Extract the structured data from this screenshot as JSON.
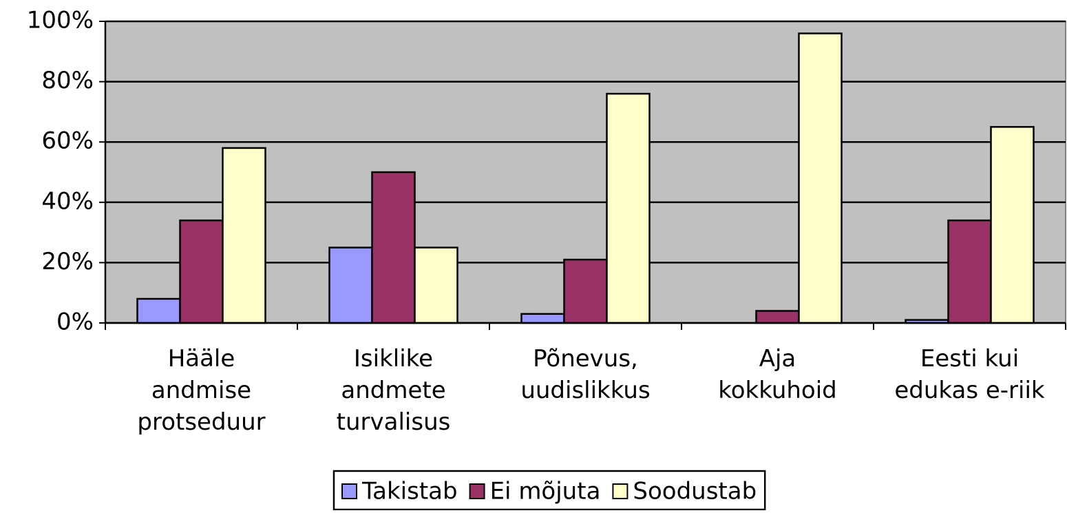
{
  "chart_data": {
    "type": "bar",
    "categories": [
      [
        "Hääle",
        "andmise",
        "protseduur"
      ],
      [
        "Isiklike",
        "andmete",
        "turvalisus"
      ],
      [
        "Põnevus,",
        "uudislikkus"
      ],
      [
        "Aja",
        "kokkuhoid"
      ],
      [
        "Eesti kui",
        "edukas e-riik"
      ]
    ],
    "series": [
      {
        "name": "Takistab",
        "color": "#9999ff",
        "values": [
          8,
          25,
          3,
          0,
          1
        ]
      },
      {
        "name": "Ei mõjuta",
        "color": "#993366",
        "values": [
          34,
          50,
          21,
          4,
          34
        ]
      },
      {
        "name": "Soodustab",
        "color": "#ffffcc",
        "values": [
          58,
          25,
          76,
          96,
          65
        ]
      }
    ],
    "ylim": [
      0,
      100
    ],
    "yticks": [
      {
        "value": 0,
        "label": "0%"
      },
      {
        "value": 20,
        "label": "20%"
      },
      {
        "value": 40,
        "label": "40%"
      },
      {
        "value": 60,
        "label": "60%"
      },
      {
        "value": 80,
        "label": "80%"
      },
      {
        "value": 100,
        "label": "100%"
      }
    ],
    "grid": true,
    "legend": "bottom",
    "plot_background": "#c0c0c0"
  }
}
